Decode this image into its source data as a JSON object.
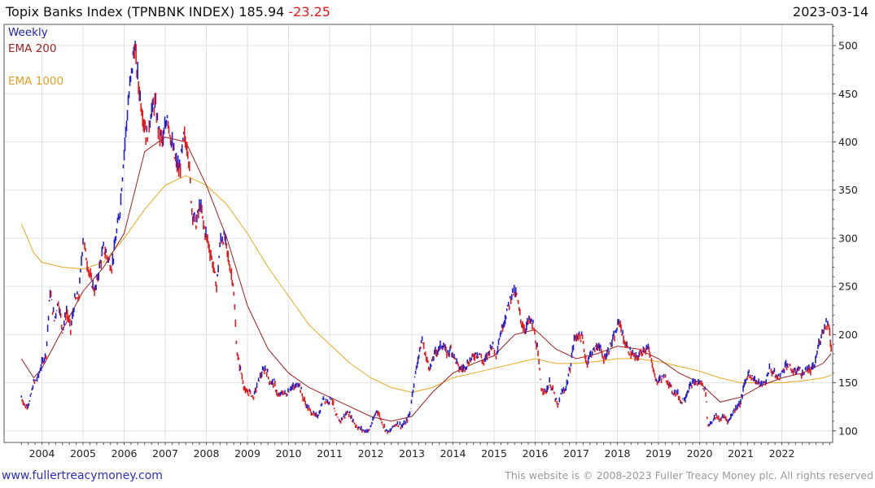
{
  "header": {
    "title": "Topix Banks Index (TPNBNK INDEX)",
    "last": "185.94",
    "change": "-23.25",
    "date": "2023-03-14"
  },
  "legend": {
    "period": "Weekly",
    "ema200": "EMA 200",
    "ema1000": "EMA 1000"
  },
  "footer": {
    "site": "www.fullertreacymoney.com",
    "copyright": "This website is © 2008-2023 Fuller Treacy Money plc. All rights reserved"
  },
  "colors": {
    "up_bar": "#1f1fd0",
    "down_bar": "#e81616",
    "ema200": "#9e1f1f",
    "ema1000": "#e8a820",
    "grid": "#e2e2e2",
    "axis": "#555555"
  },
  "chart_data": {
    "type": "line",
    "title": "Topix Banks Index (TPNBNK INDEX)",
    "frequency": "Weekly",
    "x_range": [
      2003.5,
      2023.2
    ],
    "y_range": [
      88,
      522
    ],
    "x_ticks": [
      "2004",
      "2005",
      "2006",
      "2007",
      "2008",
      "2009",
      "2010",
      "2011",
      "2012",
      "2013",
      "2014",
      "2015",
      "2016",
      "2017",
      "2018",
      "2019",
      "2020",
      "2021",
      "2022"
    ],
    "y_ticks": [
      "100",
      "150",
      "200",
      "250",
      "300",
      "350",
      "400",
      "450",
      "500"
    ],
    "y_axis_side": "right",
    "price_series": {
      "name": "Topix Banks Index (weekly, approx.)",
      "points": [
        [
          2003.5,
          135
        ],
        [
          2003.6,
          125
        ],
        [
          2003.7,
          130
        ],
        [
          2003.8,
          150
        ],
        [
          2003.9,
          155
        ],
        [
          2004.0,
          170
        ],
        [
          2004.1,
          180
        ],
        [
          2004.2,
          245
        ],
        [
          2004.3,
          215
        ],
        [
          2004.4,
          235
        ],
        [
          2004.5,
          205
        ],
        [
          2004.6,
          225
        ],
        [
          2004.7,
          205
        ],
        [
          2004.8,
          235
        ],
        [
          2004.9,
          240
        ],
        [
          2005.0,
          300
        ],
        [
          2005.1,
          275
        ],
        [
          2005.2,
          255
        ],
        [
          2005.3,
          245
        ],
        [
          2005.4,
          270
        ],
        [
          2005.5,
          290
        ],
        [
          2005.6,
          280
        ],
        [
          2005.7,
          270
        ],
        [
          2005.8,
          300
        ],
        [
          2005.9,
          330
        ],
        [
          2006.0,
          390
        ],
        [
          2006.1,
          440
        ],
        [
          2006.2,
          480
        ],
        [
          2006.25,
          500
        ],
        [
          2006.35,
          460
        ],
        [
          2006.45,
          430
        ],
        [
          2006.55,
          405
        ],
        [
          2006.65,
          430
        ],
        [
          2006.75,
          440
        ],
        [
          2006.85,
          410
        ],
        [
          2006.95,
          400
        ],
        [
          2007.05,
          430
        ],
        [
          2007.15,
          400
        ],
        [
          2007.25,
          380
        ],
        [
          2007.35,
          370
        ],
        [
          2007.45,
          405
        ],
        [
          2007.55,
          395
        ],
        [
          2007.65,
          330
        ],
        [
          2007.75,
          315
        ],
        [
          2007.85,
          335
        ],
        [
          2007.95,
          310
        ],
        [
          2008.05,
          295
        ],
        [
          2008.15,
          275
        ],
        [
          2008.25,
          250
        ],
        [
          2008.35,
          300
        ],
        [
          2008.45,
          300
        ],
        [
          2008.55,
          275
        ],
        [
          2008.65,
          255
        ],
        [
          2008.75,
          180
        ],
        [
          2008.85,
          160
        ],
        [
          2008.95,
          140
        ],
        [
          2009.05,
          140
        ],
        [
          2009.15,
          135
        ],
        [
          2009.25,
          150
        ],
        [
          2009.35,
          160
        ],
        [
          2009.45,
          165
        ],
        [
          2009.55,
          150
        ],
        [
          2009.65,
          150
        ],
        [
          2009.75,
          135
        ],
        [
          2009.85,
          140
        ],
        [
          2009.95,
          138
        ],
        [
          2010.05,
          145
        ],
        [
          2010.15,
          145
        ],
        [
          2010.25,
          150
        ],
        [
          2010.35,
          135
        ],
        [
          2010.45,
          125
        ],
        [
          2010.55,
          120
        ],
        [
          2010.65,
          115
        ],
        [
          2010.75,
          118
        ],
        [
          2010.85,
          135
        ],
        [
          2010.95,
          130
        ],
        [
          2011.05,
          135
        ],
        [
          2011.15,
          115
        ],
        [
          2011.25,
          110
        ],
        [
          2011.35,
          115
        ],
        [
          2011.45,
          120
        ],
        [
          2011.55,
          112
        ],
        [
          2011.65,
          105
        ],
        [
          2011.75,
          102
        ],
        [
          2011.85,
          100
        ],
        [
          2011.95,
          100
        ],
        [
          2012.05,
          110
        ],
        [
          2012.15,
          122
        ],
        [
          2012.25,
          112
        ],
        [
          2012.35,
          102
        ],
        [
          2012.45,
          98
        ],
        [
          2012.55,
          105
        ],
        [
          2012.65,
          108
        ],
        [
          2012.75,
          105
        ],
        [
          2012.85,
          108
        ],
        [
          2012.95,
          118
        ],
        [
          2013.05,
          150
        ],
        [
          2013.15,
          175
        ],
        [
          2013.25,
          195
        ],
        [
          2013.35,
          175
        ],
        [
          2013.45,
          165
        ],
        [
          2013.55,
          180
        ],
        [
          2013.65,
          185
        ],
        [
          2013.75,
          190
        ],
        [
          2013.85,
          180
        ],
        [
          2013.95,
          185
        ],
        [
          2014.05,
          175
        ],
        [
          2014.15,
          165
        ],
        [
          2014.25,
          165
        ],
        [
          2014.35,
          170
        ],
        [
          2014.45,
          175
        ],
        [
          2014.55,
          180
        ],
        [
          2014.65,
          180
        ],
        [
          2014.75,
          170
        ],
        [
          2014.85,
          180
        ],
        [
          2014.95,
          190
        ],
        [
          2015.05,
          180
        ],
        [
          2015.15,
          200
        ],
        [
          2015.25,
          215
        ],
        [
          2015.35,
          230
        ],
        [
          2015.45,
          245
        ],
        [
          2015.55,
          240
        ],
        [
          2015.65,
          215
        ],
        [
          2015.75,
          205
        ],
        [
          2015.85,
          215
        ],
        [
          2015.95,
          210
        ],
        [
          2016.05,
          185
        ],
        [
          2016.15,
          145
        ],
        [
          2016.25,
          140
        ],
        [
          2016.35,
          150
        ],
        [
          2016.45,
          140
        ],
        [
          2016.55,
          125
        ],
        [
          2016.65,
          140
        ],
        [
          2016.75,
          145
        ],
        [
          2016.85,
          165
        ],
        [
          2016.95,
          195
        ],
        [
          2017.05,
          200
        ],
        [
          2017.15,
          195
        ],
        [
          2017.25,
          170
        ],
        [
          2017.35,
          180
        ],
        [
          2017.45,
          185
        ],
        [
          2017.55,
          190
        ],
        [
          2017.65,
          175
        ],
        [
          2017.75,
          180
        ],
        [
          2017.85,
          190
        ],
        [
          2017.95,
          200
        ],
        [
          2018.05,
          215
        ],
        [
          2018.15,
          195
        ],
        [
          2018.25,
          185
        ],
        [
          2018.35,
          180
        ],
        [
          2018.45,
          175
        ],
        [
          2018.55,
          180
        ],
        [
          2018.65,
          185
        ],
        [
          2018.75,
          185
        ],
        [
          2018.85,
          170
        ],
        [
          2018.95,
          150
        ],
        [
          2019.05,
          155
        ],
        [
          2019.15,
          155
        ],
        [
          2019.25,
          150
        ],
        [
          2019.35,
          140
        ],
        [
          2019.45,
          140
        ],
        [
          2019.55,
          130
        ],
        [
          2019.65,
          135
        ],
        [
          2019.75,
          145
        ],
        [
          2019.85,
          150
        ],
        [
          2019.95,
          150
        ],
        [
          2020.05,
          150
        ],
        [
          2020.15,
          140
        ],
        [
          2020.2,
          105
        ],
        [
          2020.3,
          110
        ],
        [
          2020.4,
          115
        ],
        [
          2020.5,
          112
        ],
        [
          2020.6,
          115
        ],
        [
          2020.7,
          110
        ],
        [
          2020.8,
          118
        ],
        [
          2020.9,
          125
        ],
        [
          2021.0,
          130
        ],
        [
          2021.1,
          150
        ],
        [
          2021.2,
          160
        ],
        [
          2021.3,
          155
        ],
        [
          2021.4,
          150
        ],
        [
          2021.5,
          148
        ],
        [
          2021.6,
          150
        ],
        [
          2021.7,
          165
        ],
        [
          2021.8,
          160
        ],
        [
          2021.9,
          155
        ],
        [
          2022.0,
          160
        ],
        [
          2022.1,
          170
        ],
        [
          2022.2,
          165
        ],
        [
          2022.3,
          160
        ],
        [
          2022.4,
          165
        ],
        [
          2022.5,
          158
        ],
        [
          2022.6,
          165
        ],
        [
          2022.7,
          162
        ],
        [
          2022.8,
          168
        ],
        [
          2022.9,
          190
        ],
        [
          2023.0,
          205
        ],
        [
          2023.1,
          213
        ],
        [
          2023.15,
          209
        ],
        [
          2023.2,
          185.94
        ]
      ]
    },
    "ema200": {
      "name": "EMA 200",
      "points": [
        [
          2003.5,
          175
        ],
        [
          2003.8,
          155
        ],
        [
          2004.0,
          165
        ],
        [
          2004.5,
          205
        ],
        [
          2005.0,
          245
        ],
        [
          2005.5,
          270
        ],
        [
          2006.0,
          305
        ],
        [
          2006.5,
          390
        ],
        [
          2007.0,
          405
        ],
        [
          2007.5,
          400
        ],
        [
          2008.0,
          355
        ],
        [
          2008.5,
          300
        ],
        [
          2009.0,
          230
        ],
        [
          2009.5,
          185
        ],
        [
          2010.0,
          160
        ],
        [
          2010.5,
          145
        ],
        [
          2011.0,
          135
        ],
        [
          2011.5,
          125
        ],
        [
          2012.0,
          115
        ],
        [
          2012.5,
          110
        ],
        [
          2013.0,
          115
        ],
        [
          2013.5,
          140
        ],
        [
          2014.0,
          160
        ],
        [
          2014.5,
          170
        ],
        [
          2015.0,
          178
        ],
        [
          2015.5,
          200
        ],
        [
          2016.0,
          205
        ],
        [
          2016.5,
          185
        ],
        [
          2017.0,
          175
        ],
        [
          2017.5,
          180
        ],
        [
          2018.0,
          188
        ],
        [
          2018.5,
          185
        ],
        [
          2019.0,
          175
        ],
        [
          2019.5,
          160
        ],
        [
          2020.0,
          150
        ],
        [
          2020.5,
          130
        ],
        [
          2021.0,
          135
        ],
        [
          2021.5,
          147
        ],
        [
          2022.0,
          155
        ],
        [
          2022.5,
          160
        ],
        [
          2023.0,
          170
        ],
        [
          2023.2,
          180
        ]
      ]
    },
    "ema1000": {
      "name": "EMA 1000",
      "points": [
        [
          2003.5,
          315
        ],
        [
          2003.8,
          285
        ],
        [
          2004.0,
          275
        ],
        [
          2004.5,
          270
        ],
        [
          2005.0,
          268
        ],
        [
          2005.5,
          275
        ],
        [
          2006.0,
          300
        ],
        [
          2006.5,
          330
        ],
        [
          2007.0,
          355
        ],
        [
          2007.5,
          365
        ],
        [
          2008.0,
          355
        ],
        [
          2008.5,
          335
        ],
        [
          2009.0,
          305
        ],
        [
          2009.5,
          270
        ],
        [
          2010.0,
          240
        ],
        [
          2010.5,
          210
        ],
        [
          2011.0,
          190
        ],
        [
          2011.5,
          170
        ],
        [
          2012.0,
          155
        ],
        [
          2012.5,
          145
        ],
        [
          2013.0,
          140
        ],
        [
          2013.5,
          145
        ],
        [
          2014.0,
          155
        ],
        [
          2014.5,
          160
        ],
        [
          2015.0,
          165
        ],
        [
          2015.5,
          170
        ],
        [
          2016.0,
          175
        ],
        [
          2016.5,
          170
        ],
        [
          2017.0,
          170
        ],
        [
          2017.5,
          172
        ],
        [
          2018.0,
          175
        ],
        [
          2018.5,
          175
        ],
        [
          2019.0,
          172
        ],
        [
          2019.5,
          167
        ],
        [
          2020.0,
          162
        ],
        [
          2020.5,
          155
        ],
        [
          2021.0,
          150
        ],
        [
          2021.5,
          150
        ],
        [
          2022.0,
          150
        ],
        [
          2022.5,
          152
        ],
        [
          2023.0,
          155
        ],
        [
          2023.2,
          158
        ]
      ]
    }
  }
}
